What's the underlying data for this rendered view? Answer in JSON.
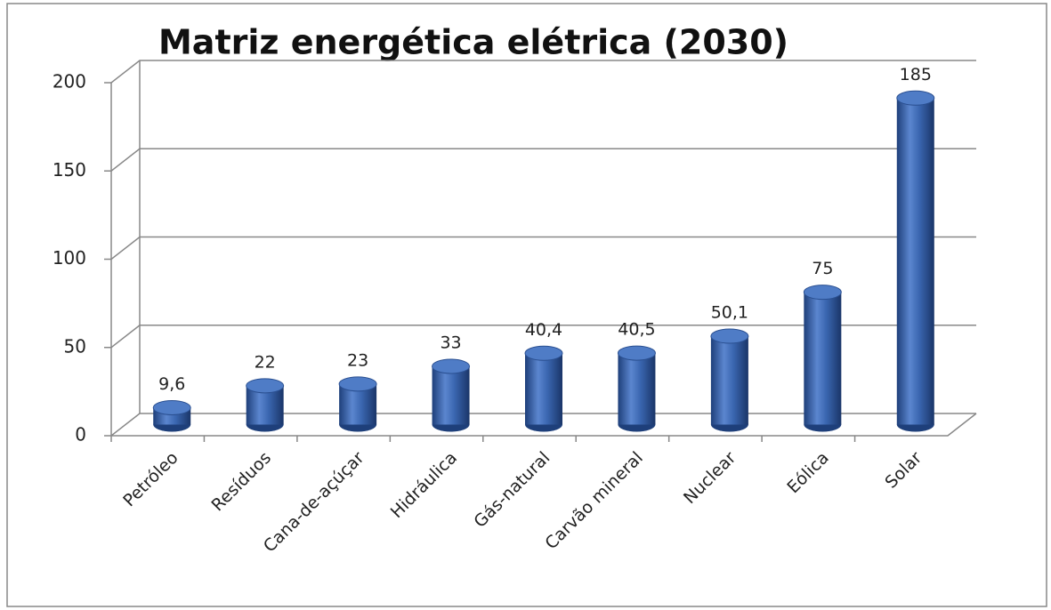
{
  "chart_data": {
    "type": "bar3d",
    "title": "Matriz energética elétrica (2030)",
    "categories": [
      "Petróleo",
      "Resíduos",
      "Cana-de-açúçar",
      "Hidráulica",
      "Gás-natural",
      "Carvão mineral",
      "Nuclear",
      "Eólica",
      "Solar"
    ],
    "values": [
      9.6,
      22,
      23,
      33,
      40.4,
      40.5,
      50.1,
      75,
      185
    ],
    "value_labels": [
      "9,6",
      "22",
      "23",
      "33",
      "40,4",
      "40,5",
      "50,1",
      "75",
      "185"
    ],
    "color": "#3a66b0",
    "ylim": [
      0,
      200
    ],
    "yticks": [
      0,
      50,
      100,
      150,
      200
    ],
    "grid": true
  }
}
